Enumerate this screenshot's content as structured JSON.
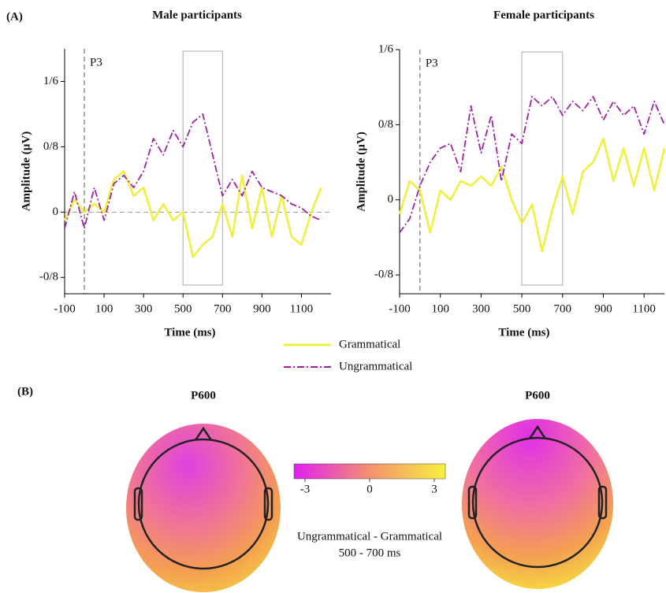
{
  "panel_labels": [
    "(A)",
    "(B)"
  ],
  "chart_data": [
    {
      "type": "line",
      "title": "Male participants",
      "annotation": "P3",
      "marker_x": 0,
      "highlight_window": [
        500,
        700
      ],
      "zero_line": true,
      "ylabel": "Amplitude (µV)",
      "xlabel": "Time (ms)",
      "x": [
        -100,
        -50,
        0,
        50,
        100,
        150,
        200,
        250,
        300,
        350,
        400,
        450,
        500,
        550,
        600,
        650,
        700,
        750,
        800,
        850,
        900,
        950,
        1000,
        1050,
        1100,
        1150,
        1200
      ],
      "series": [
        {
          "name": "Grammatical",
          "color": "#f0f03c",
          "dash": false,
          "values": [
            -0.1,
            0.15,
            0.0,
            0.1,
            0.0,
            0.4,
            0.5,
            0.2,
            0.3,
            -0.1,
            0.1,
            -0.1,
            0.0,
            -0.55,
            -0.4,
            -0.3,
            0.1,
            -0.3,
            0.45,
            -0.2,
            0.3,
            -0.3,
            0.2,
            -0.3,
            -0.4,
            0.0,
            0.3
          ]
        },
        {
          "name": "Ungrammatical",
          "color": "#a020a8",
          "dash": true,
          "values": [
            -0.2,
            0.25,
            -0.2,
            0.3,
            -0.1,
            0.35,
            0.45,
            0.3,
            0.5,
            0.9,
            0.7,
            1.0,
            0.8,
            1.1,
            1.2,
            0.7,
            0.2,
            0.4,
            0.2,
            0.5,
            0.3,
            0.25,
            0.2,
            0.1,
            0.05,
            -0.05,
            -0.1
          ]
        }
      ],
      "xlim": [
        -100,
        1250
      ],
      "xticks": [
        -100,
        100,
        300,
        500,
        700,
        900,
        1100
      ],
      "ylim": [
        -1.0,
        2.0
      ],
      "yticks": [
        {
          "value": -0.8,
          "label": "-0/8"
        },
        0,
        {
          "value": 0.8,
          "label": "0/8"
        },
        {
          "value": 1.6,
          "label": "1/6"
        }
      ]
    },
    {
      "type": "line",
      "title": "Female participants",
      "annotation": "P3",
      "marker_x": 0,
      "highlight_window": [
        500,
        700
      ],
      "zero_line": false,
      "ylabel": "Amplitude (µV)",
      "xlabel": "Time (ms)",
      "x": [
        -100,
        -50,
        0,
        50,
        100,
        150,
        200,
        250,
        300,
        350,
        400,
        450,
        500,
        550,
        600,
        650,
        700,
        750,
        800,
        850,
        900,
        950,
        1000,
        1050,
        1100,
        1150,
        1200
      ],
      "series": [
        {
          "name": "Grammatical",
          "color": "#f0f03c",
          "dash": false,
          "values": [
            -0.15,
            0.2,
            0.1,
            -0.35,
            0.1,
            0.0,
            0.2,
            0.15,
            0.25,
            0.15,
            0.35,
            0.0,
            -0.25,
            -0.05,
            -0.55,
            -0.1,
            0.25,
            -0.15,
            0.3,
            0.4,
            0.65,
            0.2,
            0.55,
            0.15,
            0.55,
            0.1,
            0.55
          ]
        },
        {
          "name": "Ungrammatical",
          "color": "#a020a8",
          "dash": true,
          "values": [
            -0.35,
            -0.2,
            0.15,
            0.4,
            0.55,
            0.6,
            0.3,
            1.0,
            0.5,
            0.9,
            0.2,
            0.7,
            0.6,
            1.1,
            1.0,
            1.1,
            0.9,
            1.05,
            0.95,
            1.1,
            0.85,
            1.05,
            0.9,
            1.0,
            0.7,
            1.05,
            0.8
          ]
        }
      ],
      "xlim": [
        -100,
        1200
      ],
      "xticks": [
        -100,
        100,
        300,
        500,
        700,
        900,
        1100
      ],
      "ylim": [
        -1.0,
        1.6
      ],
      "yticks": [
        {
          "value": -0.8,
          "label": "-0/8"
        },
        0,
        {
          "value": 0.8,
          "label": "0/8"
        },
        {
          "value": 1.6,
          "label": "1/6"
        }
      ]
    }
  ],
  "topomaps": [
    {
      "title": "P600"
    },
    {
      "title": "P600"
    }
  ],
  "colorbar": {
    "ticks": [
      -3,
      0,
      3
    ],
    "lim": [
      -3,
      3
    ],
    "label": "Ungrammatical - Grammatical",
    "window": "500 - 700 ms"
  }
}
